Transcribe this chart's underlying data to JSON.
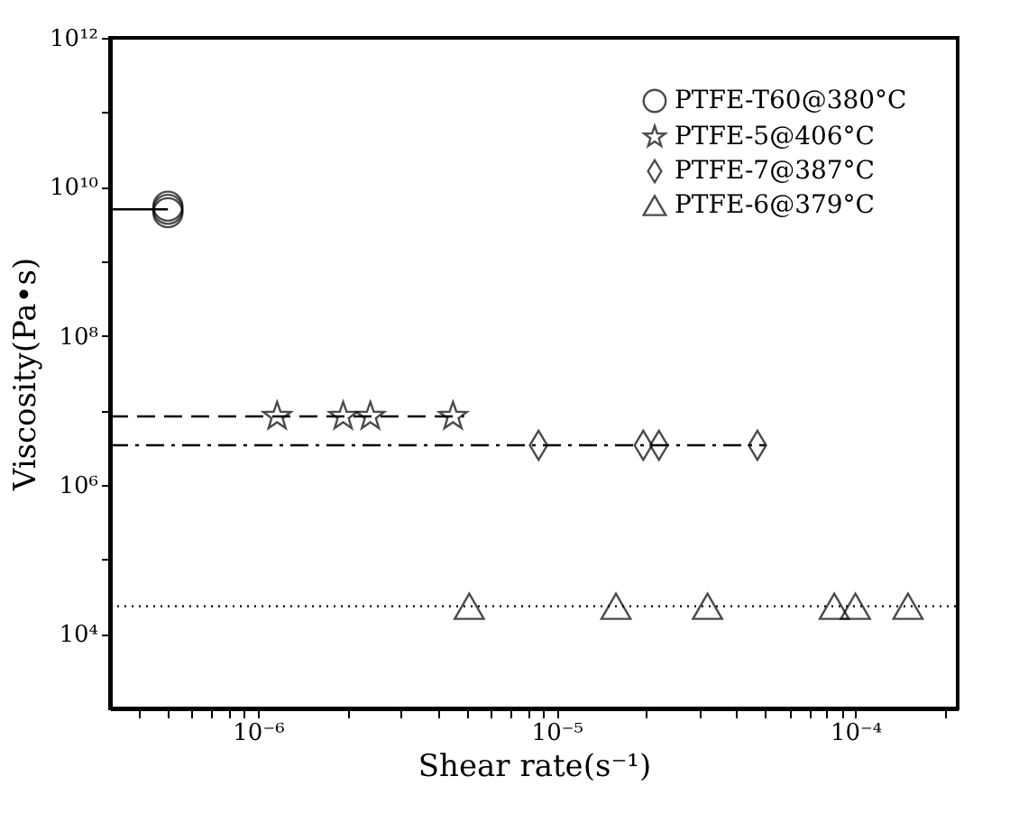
{
  "chart_data": {
    "type": "scatter",
    "xlabel": "Shear rate(s⁻¹)",
    "ylabel": "Viscosity(Pa•s)",
    "log": "xy",
    "grid": false,
    "legend": "top right",
    "xlim": [
      3.2e-07,
      0.00022
    ],
    "ylim": [
      1000.0,
      1000000000000.0
    ],
    "xticks": [
      {
        "value": 4e-07,
        "label": null
      },
      {
        "value": 5e-07,
        "label": null
      },
      {
        "value": 6e-07,
        "label": null
      },
      {
        "value": 7e-07,
        "label": null
      },
      {
        "value": 8e-07,
        "label": null
      },
      {
        "value": 9e-07,
        "label": null
      },
      {
        "value": 1e-06,
        "label": "10⁻⁶"
      },
      {
        "value": 2e-06,
        "label": null
      },
      {
        "value": 3e-06,
        "label": null
      },
      {
        "value": 4e-06,
        "label": null
      },
      {
        "value": 5e-06,
        "label": null
      },
      {
        "value": 6e-06,
        "label": null
      },
      {
        "value": 7e-06,
        "label": null
      },
      {
        "value": 8e-06,
        "label": null
      },
      {
        "value": 9e-06,
        "label": null
      },
      {
        "value": 1e-05,
        "label": "10⁻⁵"
      },
      {
        "value": 2e-05,
        "label": null
      },
      {
        "value": 3e-05,
        "label": null
      },
      {
        "value": 4e-05,
        "label": null
      },
      {
        "value": 5e-05,
        "label": null
      },
      {
        "value": 6e-05,
        "label": null
      },
      {
        "value": 7e-05,
        "label": null
      },
      {
        "value": 8e-05,
        "label": null
      },
      {
        "value": 9e-05,
        "label": null
      },
      {
        "value": 0.0001,
        "label": "10⁻⁴"
      },
      {
        "value": 0.0002,
        "label": null
      }
    ],
    "yticks": [
      {
        "value": 10000.0,
        "label": "10⁴"
      },
      {
        "value": 100000.0,
        "label": null
      },
      {
        "value": 1000000.0,
        "label": "10⁶"
      },
      {
        "value": 10000000.0,
        "label": null
      },
      {
        "value": 100000000.0,
        "label": "10⁸"
      },
      {
        "value": 1000000000.0,
        "label": null
      },
      {
        "value": 10000000000.0,
        "label": "10¹⁰"
      },
      {
        "value": 100000000000.0,
        "label": null
      },
      {
        "value": 1000000000000.0,
        "label": "10¹²"
      }
    ],
    "series": [
      {
        "name": "PTFE-T60@380°C",
        "color": "#000000",
        "marker": "circle",
        "x": [
          5e-07,
          5e-07,
          5e-07
        ],
        "values": [
          4500000000.0,
          5000000000.0,
          5500000000.0
        ]
      },
      {
        "name": "PTFE-5@406°C",
        "color": "#000000",
        "marker": "star",
        "x": [
          1.16e-06,
          1.93e-06,
          2.38e-06,
          4.5e-06
        ],
        "values": [
          8300000.0,
          8300000.0,
          8300000.0,
          8300000.0
        ]
      },
      {
        "name": "PTFE-7@387°C",
        "color": "#000000",
        "marker": "diamond",
        "x": [
          8.7e-06,
          1.95e-05,
          2.2e-05,
          4.7e-05
        ],
        "values": [
          3400000.0,
          3400000.0,
          3400000.0,
          3400000.0
        ]
      },
      {
        "name": "PTFE-6@379°C",
        "color": "#000000",
        "marker": "triangle",
        "x": [
          5.1e-06,
          1.58e-05,
          3.2e-05,
          8.5e-05,
          0.0001,
          0.00015
        ],
        "values": [
          23500.0,
          23500.0,
          23500.0,
          23500.0,
          23500.0,
          23500.0
        ]
      },
      {
        "type": "line",
        "color": "#000000",
        "line_style": "solid",
        "x": [
          3.2e-07,
          5e-07
        ],
        "values": [
          5000000000.0,
          5000000000.0
        ]
      },
      {
        "type": "line",
        "color": "#000000",
        "line_style": "dashed",
        "x": [
          3.2e-07,
          4.9e-06
        ],
        "values": [
          8300000.0,
          8300000.0
        ]
      },
      {
        "type": "line",
        "color": "#000000",
        "line_style": "dashdot",
        "x": [
          3.2e-07,
          5e-05
        ],
        "values": [
          3400000.0,
          3400000.0
        ]
      },
      {
        "type": "line",
        "color": "#000000",
        "line_style": "dotted",
        "x": [
          3.2e-07,
          0.00022
        ],
        "values": [
          23500.0,
          23500.0
        ]
      }
    ]
  }
}
